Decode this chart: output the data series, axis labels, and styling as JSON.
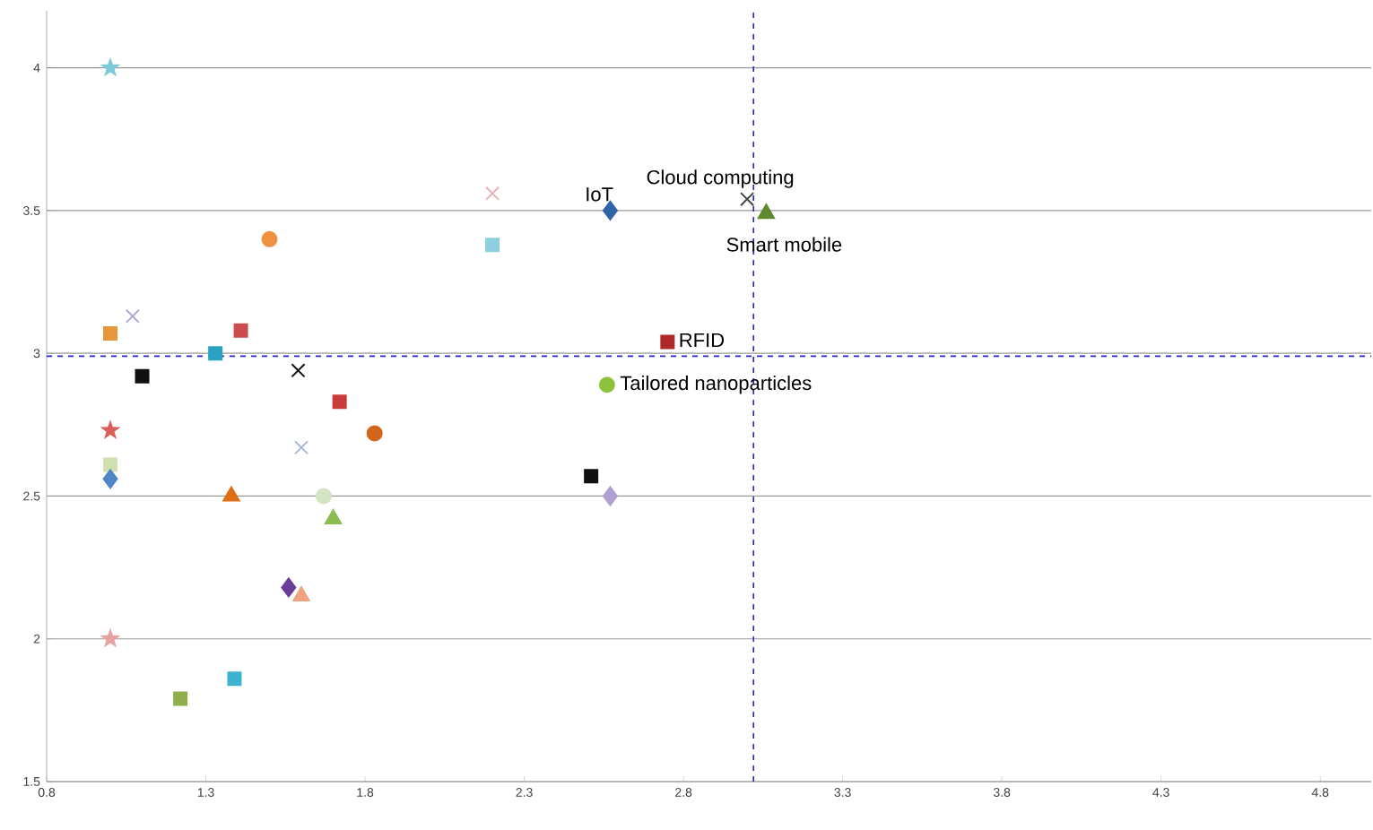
{
  "chart_data": {
    "type": "scatter",
    "xlim": [
      0.8,
      4.96
    ],
    "ylim": [
      1.5,
      4.2
    ],
    "xticks": [
      0.8,
      1.3,
      1.8,
      2.3,
      2.8,
      3.3,
      3.8,
      4.3,
      4.8
    ],
    "yticks": [
      1.5,
      2,
      2.5,
      3,
      3.5,
      4
    ],
    "grid": "y",
    "series": [
      {
        "x": [
          1.0
        ],
        "values": [
          4.0
        ],
        "color": "#7ccad6",
        "marker": "star"
      },
      {
        "x": [
          1.0
        ],
        "values": [
          3.07
        ],
        "color": "#e8963c",
        "marker": "square"
      },
      {
        "x": [
          1.07
        ],
        "values": [
          3.13
        ],
        "color": "#b3a6d6",
        "marker": "cross"
      },
      {
        "x": [
          1.1
        ],
        "values": [
          2.92
        ],
        "color": "#111111",
        "marker": "square"
      },
      {
        "x": [
          1.0
        ],
        "values": [
          2.73
        ],
        "color": "#d9605a",
        "marker": "star"
      },
      {
        "x": [
          1.0
        ],
        "values": [
          2.61
        ],
        "color": "#cfe0b0",
        "marker": "square"
      },
      {
        "x": [
          1.0
        ],
        "values": [
          2.56
        ],
        "color": "#4f86c6",
        "marker": "diamond"
      },
      {
        "x": [
          1.0
        ],
        "values": [
          2.0
        ],
        "color": "#e8a0a0",
        "marker": "star"
      },
      {
        "x": [
          1.22
        ],
        "values": [
          1.79
        ],
        "color": "#8db04a",
        "marker": "square"
      },
      {
        "x": [
          1.39
        ],
        "values": [
          1.86
        ],
        "color": "#3bb3d0",
        "marker": "square"
      },
      {
        "x": [
          1.33
        ],
        "values": [
          3.0
        ],
        "color": "#2aa3c2",
        "marker": "square"
      },
      {
        "x": [
          1.41
        ],
        "values": [
          3.08
        ],
        "color": "#cc4d4d",
        "marker": "square"
      },
      {
        "x": [
          1.5
        ],
        "values": [
          3.4
        ],
        "color": "#ee9240",
        "marker": "circle"
      },
      {
        "x": [
          1.38
        ],
        "values": [
          2.5
        ],
        "color": "#dd6f14",
        "marker": "triangle"
      },
      {
        "x": [
          1.59
        ],
        "values": [
          2.94
        ],
        "color": "#111111",
        "marker": "cross"
      },
      {
        "x": [
          1.6
        ],
        "values": [
          2.67
        ],
        "color": "#a8b8e0",
        "marker": "cross"
      },
      {
        "x": [
          1.72
        ],
        "values": [
          2.83
        ],
        "color": "#c83c3c",
        "marker": "square"
      },
      {
        "x": [
          1.83
        ],
        "values": [
          2.72
        ],
        "color": "#d2651a",
        "marker": "circle"
      },
      {
        "x": [
          1.67
        ],
        "values": [
          2.5
        ],
        "color": "#d4e3c2",
        "marker": "circle"
      },
      {
        "x": [
          1.7
        ],
        "values": [
          2.42
        ],
        "color": "#8cbc52",
        "marker": "triangle"
      },
      {
        "x": [
          1.56
        ],
        "values": [
          2.18
        ],
        "color": "#6a3d9a",
        "marker": "diamond"
      },
      {
        "x": [
          1.6
        ],
        "values": [
          2.15
        ],
        "color": "#f0a383",
        "marker": "triangle"
      },
      {
        "x": [
          2.2
        ],
        "values": [
          3.56
        ],
        "color": "#e8b0b8",
        "marker": "cross"
      },
      {
        "x": [
          2.2
        ],
        "values": [
          3.38
        ],
        "color": "#8ccfe0",
        "marker": "square"
      },
      {
        "x": [
          2.57
        ],
        "values": [
          3.5
        ],
        "color": "#2e64a8",
        "marker": "diamond"
      },
      {
        "x": [
          3.0
        ],
        "values": [
          3.54
        ],
        "color": "#444444",
        "marker": "cross"
      },
      {
        "x": [
          3.06
        ],
        "values": [
          3.49
        ],
        "color": "#5e8a2e",
        "marker": "triangle"
      },
      {
        "x": [
          2.75
        ],
        "values": [
          3.04
        ],
        "color": "#b02828",
        "marker": "square"
      },
      {
        "x": [
          2.56
        ],
        "values": [
          2.89
        ],
        "color": "#8cc23c",
        "marker": "circle"
      },
      {
        "x": [
          2.51
        ],
        "values": [
          2.57
        ],
        "color": "#111111",
        "marker": "square"
      },
      {
        "x": [
          2.57
        ],
        "values": [
          2.5
        ],
        "color": "#b0a0d0",
        "marker": "diamond"
      }
    ],
    "ref_lines": [
      {
        "axis": "x",
        "value": 3.02,
        "color": "#2424c8",
        "line_style": "dashed"
      },
      {
        "axis": "y",
        "value": 2.99,
        "color": "#2424c8",
        "line_style": "dashed"
      }
    ],
    "annotations": [
      {
        "text": "IoT",
        "x": 2.57,
        "y": 3.5
      },
      {
        "text": "Cloud computing",
        "x": 3.0,
        "y": 3.54
      },
      {
        "text": "Smart mobile",
        "x": 3.06,
        "y": 3.49
      },
      {
        "text": "RFID",
        "x": 2.75,
        "y": 3.04
      },
      {
        "text": "Tailored nanoparticles",
        "x": 2.56,
        "y": 2.89
      }
    ]
  }
}
